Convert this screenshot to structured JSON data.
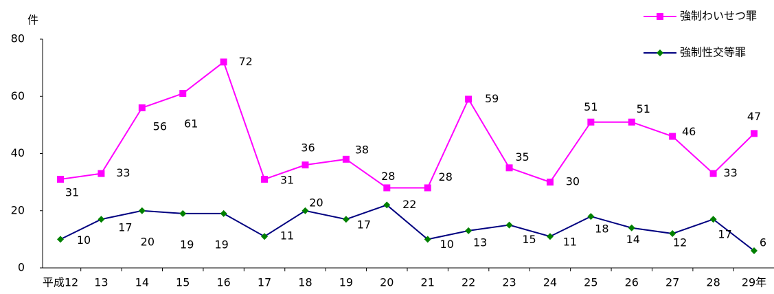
{
  "chart_data": {
    "type": "line",
    "unit_label": "件",
    "categories": [
      "平成12",
      "13",
      "14",
      "15",
      "16",
      "17",
      "18",
      "19",
      "20",
      "21",
      "22",
      "23",
      "24",
      "25",
      "26",
      "27",
      "28",
      "29年"
    ],
    "series": [
      {
        "name": "強制わいせつ罪",
        "color": "#ff00ff",
        "marker": "square",
        "marker_color": "#ff00ff",
        "values": [
          31,
          33,
          56,
          61,
          72,
          31,
          36,
          38,
          28,
          28,
          59,
          35,
          30,
          51,
          51,
          46,
          33,
          47
        ]
      },
      {
        "name": "強制性交等罪",
        "color": "#000080",
        "marker": "diamond",
        "marker_color": "#008000",
        "values": [
          10,
          17,
          20,
          19,
          19,
          11,
          20,
          17,
          22,
          10,
          13,
          15,
          11,
          18,
          14,
          12,
          17,
          6
        ]
      }
    ],
    "ylim": [
      0,
      80
    ],
    "yticks": [
      0,
      20,
      40,
      60,
      80
    ],
    "grid": false,
    "legend": "top-right"
  }
}
